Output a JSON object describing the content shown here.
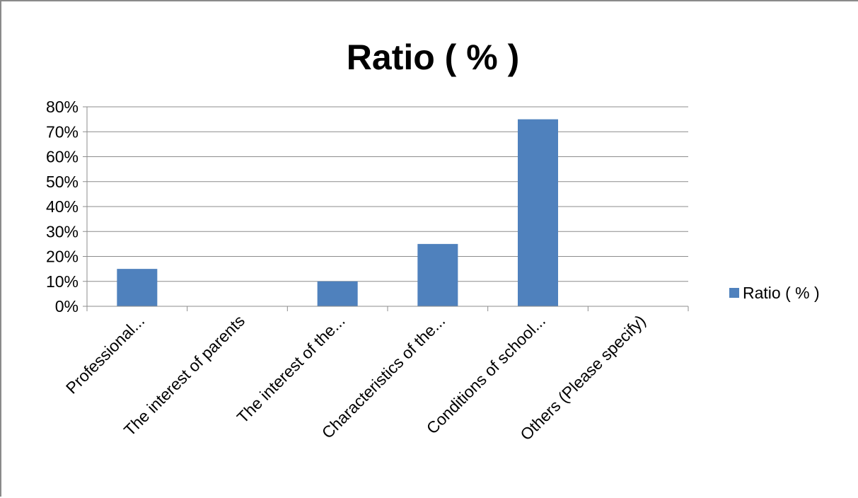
{
  "chart_data": {
    "type": "bar",
    "title": "Ratio ( % )",
    "categories": [
      "Professional...",
      "The interest of parents",
      "The interest of the...",
      "Characteristics of the...",
      "Conditions of school...",
      "Others (Please specify)"
    ],
    "series": [
      {
        "name": "Ratio ( % )",
        "values": [
          15,
          0,
          10,
          25,
          75,
          0
        ],
        "color": "#4f81bd"
      }
    ],
    "y_unit": "%",
    "ylim": [
      0,
      80
    ],
    "yticks": [
      0,
      10,
      20,
      30,
      40,
      50,
      60,
      70,
      80
    ],
    "grid": true,
    "legend_position": "right"
  }
}
